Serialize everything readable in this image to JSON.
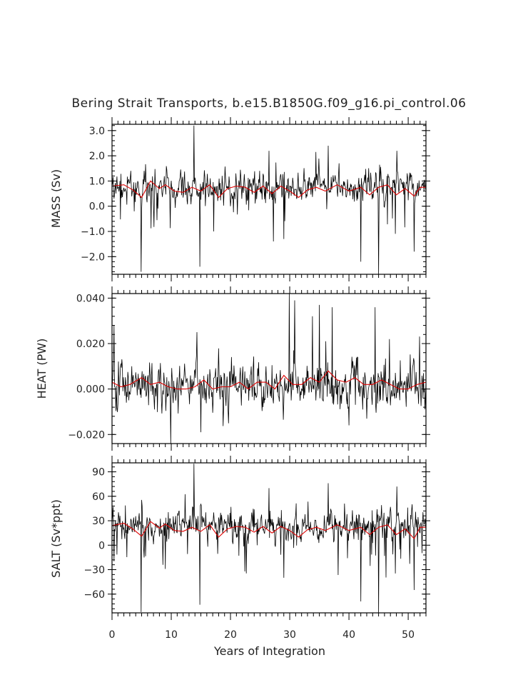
{
  "colors": {
    "raw_series": "#000000",
    "smoothed_series": "#dd0000",
    "frame": "#000000"
  },
  "chart_data": {
    "type": "line",
    "title": "Bering Strait Transports, b.e15.B1850G.f09_g16.pi_control.06",
    "xlabel": "Years of Integration",
    "xlim": [
      0,
      53
    ],
    "xticks": [
      "0",
      "10",
      "20",
      "30",
      "40",
      "50"
    ],
    "panels": [
      {
        "key": "mass",
        "ylabel": "MASS (Sv)",
        "ylim": [
          -2.7,
          3.25
        ],
        "yticks": [
          {
            "value": 3.0,
            "label": "3.0"
          },
          {
            "value": 2.0,
            "label": "2.0"
          },
          {
            "value": 1.0,
            "label": "1.0"
          },
          {
            "value": 0.0,
            "label": "0.0"
          },
          {
            "value": -1.0,
            "label": "−1.0"
          },
          {
            "value": -2.0,
            "label": "−2.0"
          }
        ],
        "mean": 0.75,
        "noise": 0.45,
        "dip_depth": 1.4,
        "spike_height": 1.0,
        "spikes": [
          [
            13.8,
            3.2
          ],
          [
            26.5,
            2.2
          ],
          [
            36.5,
            2.4
          ],
          [
            48.1,
            2.2
          ],
          [
            4.9,
            -2.6
          ],
          [
            14.8,
            -2.4
          ],
          [
            42.0,
            -2.2
          ],
          [
            45.0,
            -2.7
          ],
          [
            51.0,
            -1.8
          ],
          [
            29.0,
            -1.3
          ],
          [
            17.2,
            -1.0
          ]
        ],
        "smoothed": [
          [
            0,
            0.8
          ],
          [
            2,
            0.85
          ],
          [
            3.5,
            0.65
          ],
          [
            5,
            0.35
          ],
          [
            6.5,
            1.0
          ],
          [
            8,
            0.7
          ],
          [
            9,
            0.85
          ],
          [
            10.5,
            0.6
          ],
          [
            12,
            0.55
          ],
          [
            13.5,
            0.75
          ],
          [
            15,
            0.6
          ],
          [
            16.5,
            0.85
          ],
          [
            18,
            0.35
          ],
          [
            19.5,
            0.7
          ],
          [
            21,
            0.8
          ],
          [
            22.5,
            0.75
          ],
          [
            24,
            0.55
          ],
          [
            25.5,
            0.8
          ],
          [
            27,
            0.5
          ],
          [
            28.5,
            0.8
          ],
          [
            30,
            0.6
          ],
          [
            31.5,
            0.35
          ],
          [
            33,
            0.65
          ],
          [
            34.5,
            0.75
          ],
          [
            36,
            0.6
          ],
          [
            38,
            0.85
          ],
          [
            40,
            0.6
          ],
          [
            42,
            0.75
          ],
          [
            43.5,
            0.45
          ],
          [
            45,
            0.75
          ],
          [
            46.5,
            0.85
          ],
          [
            48,
            0.45
          ],
          [
            49.5,
            0.7
          ],
          [
            51,
            0.4
          ],
          [
            52,
            0.75
          ],
          [
            53,
            0.75
          ]
        ]
      },
      {
        "key": "heat",
        "ylabel": "HEAT (PW)",
        "ylim": [
          -0.024,
          0.042
        ],
        "yticks": [
          {
            "value": 0.04,
            "label": "0.040"
          },
          {
            "value": 0.02,
            "label": "0.020"
          },
          {
            "value": 0.0,
            "label": "0.000"
          },
          {
            "value": -0.02,
            "label": "−0.020"
          }
        ],
        "mean": 0.002,
        "noise": 0.007,
        "dip_depth": 0.006,
        "spike_height": 0.02,
        "spikes": [
          [
            29.9,
            0.042
          ],
          [
            30.8,
            0.039
          ],
          [
            35.0,
            0.037
          ],
          [
            37.2,
            0.036
          ],
          [
            44.4,
            0.036
          ],
          [
            33.8,
            0.032
          ],
          [
            9.9,
            -0.024
          ],
          [
            15.0,
            -0.019
          ],
          [
            40.0,
            -0.016
          ],
          [
            0.3,
            0.028
          ]
        ],
        "smoothed": [
          [
            0,
            0.003
          ],
          [
            1.5,
            0.001
          ],
          [
            3,
            0.002
          ],
          [
            5,
            0.005
          ],
          [
            6.5,
            0.002
          ],
          [
            8,
            0.003
          ],
          [
            9.5,
            0.001
          ],
          [
            11,
            0.0
          ],
          [
            12.5,
            0.0
          ],
          [
            14,
            0.001
          ],
          [
            15.5,
            0.004
          ],
          [
            17,
            0.0
          ],
          [
            18.5,
            0.001
          ],
          [
            20,
            0.001
          ],
          [
            21.5,
            0.003
          ],
          [
            23,
            0.0
          ],
          [
            24.5,
            0.003
          ],
          [
            26,
            0.003
          ],
          [
            27.5,
            0.0
          ],
          [
            29,
            0.006
          ],
          [
            30.5,
            0.002
          ],
          [
            32,
            0.002
          ],
          [
            33.5,
            0.005
          ],
          [
            35,
            0.003
          ],
          [
            36.5,
            0.008
          ],
          [
            38,
            0.004
          ],
          [
            39.5,
            0.003
          ],
          [
            41,
            0.005
          ],
          [
            42.5,
            0.002
          ],
          [
            44,
            0.002
          ],
          [
            45.5,
            0.004
          ],
          [
            47,
            0.002
          ],
          [
            48.5,
            0.0
          ],
          [
            50,
            0.0
          ],
          [
            51.5,
            0.002
          ],
          [
            53,
            0.003
          ]
        ]
      },
      {
        "key": "salt",
        "ylabel": "SALT (Sv*ppt)",
        "ylim": [
          -83,
          101
        ],
        "yticks": [
          {
            "value": 90,
            "label": "90"
          },
          {
            "value": 60,
            "label": "60"
          },
          {
            "value": 30,
            "label": "30"
          },
          {
            "value": 0,
            "label": "0"
          },
          {
            "value": -30,
            "label": "−30"
          },
          {
            "value": -60,
            "label": "−60"
          }
        ],
        "mean": 24,
        "noise": 13,
        "dip_depth": 40,
        "spike_height": 30,
        "spikes": [
          [
            13.8,
            100
          ],
          [
            36.5,
            76
          ],
          [
            26.5,
            70
          ],
          [
            48.1,
            72
          ],
          [
            4.9,
            -82
          ],
          [
            14.8,
            -73
          ],
          [
            42.0,
            -69
          ],
          [
            45.0,
            -83
          ],
          [
            51.0,
            -55
          ],
          [
            29.0,
            -40
          ]
        ],
        "smoothed": [
          [
            0,
            24
          ],
          [
            2,
            27
          ],
          [
            3.5,
            20
          ],
          [
            5,
            11
          ],
          [
            6.5,
            29
          ],
          [
            8,
            21
          ],
          [
            9,
            26
          ],
          [
            10.5,
            18
          ],
          [
            12,
            17
          ],
          [
            13.5,
            22
          ],
          [
            15,
            17
          ],
          [
            16.5,
            25
          ],
          [
            18,
            10
          ],
          [
            19.5,
            20
          ],
          [
            21,
            23
          ],
          [
            22.5,
            22
          ],
          [
            24,
            16
          ],
          [
            25.5,
            23
          ],
          [
            27,
            15
          ],
          [
            28.5,
            23
          ],
          [
            30,
            18
          ],
          [
            31.5,
            10
          ],
          [
            33,
            19
          ],
          [
            34.5,
            22
          ],
          [
            36,
            18
          ],
          [
            38,
            25
          ],
          [
            40,
            18
          ],
          [
            42,
            22
          ],
          [
            43.5,
            13
          ],
          [
            45,
            22
          ],
          [
            46.5,
            25
          ],
          [
            48,
            13
          ],
          [
            49.5,
            20
          ],
          [
            51,
            8
          ],
          [
            52,
            22
          ],
          [
            53,
            22
          ]
        ]
      }
    ]
  }
}
